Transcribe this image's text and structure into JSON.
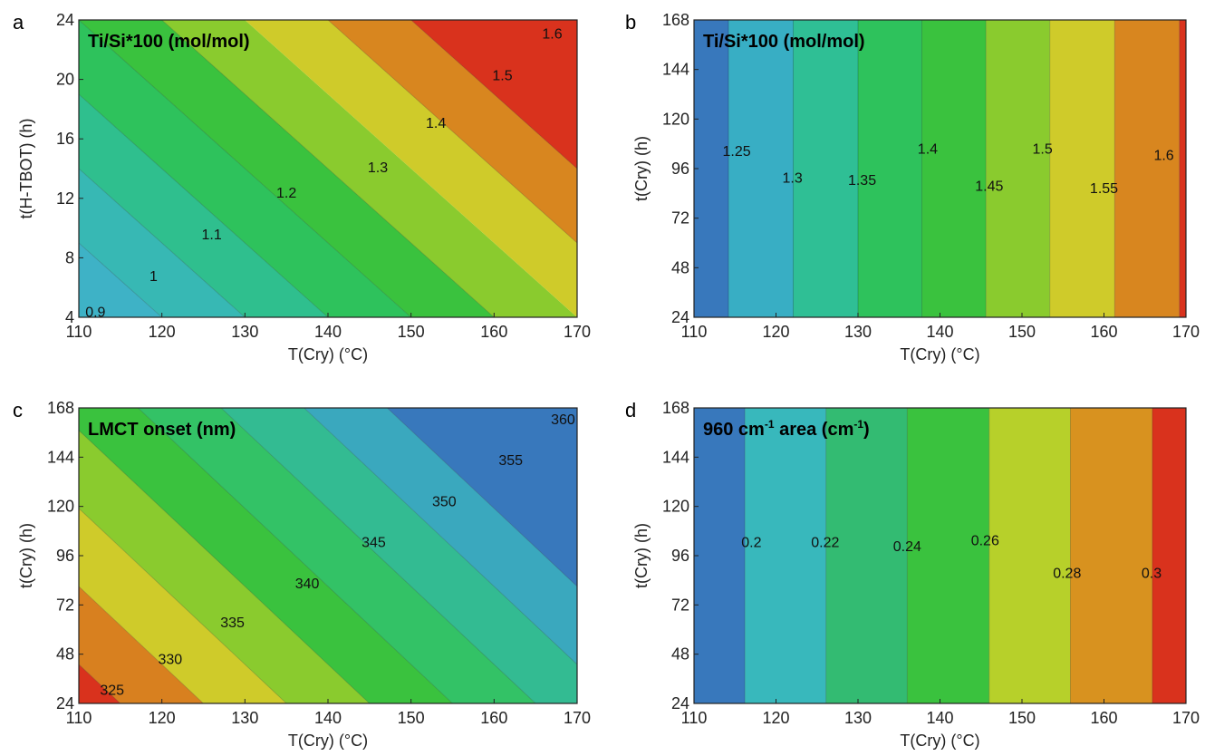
{
  "chart_data": [
    {
      "panel": "a",
      "type": "heatmap",
      "title": "Ti/Si*100 (mol/mol)",
      "title_sup": "",
      "title_tail": "",
      "xlabel": "T(Cry) (°C)",
      "ylabel": "t(H-TBOT) (h)",
      "xlim": [
        110,
        170
      ],
      "ylim": [
        4,
        24
      ],
      "xticks": [
        110,
        120,
        130,
        140,
        150,
        160,
        170
      ],
      "yticks": [
        4,
        8,
        12,
        16,
        20,
        24
      ],
      "contour_form": "diagonal",
      "model": {
        "intercept": 0.8,
        "x_ref": 110,
        "y_ref": 4,
        "x_coef": 0.01,
        "y_coef": 0.02
      },
      "levels": [
        0.9,
        1,
        1.1,
        1.2,
        1.3,
        1.4,
        1.5,
        1.6
      ],
      "colors": [
        "#3EB2C6",
        "#37B8B4",
        "#2FBF8E",
        "#2EC25C",
        "#3AC23E",
        "#8ACB2E",
        "#CFCB2A",
        "#D8861F",
        "#D9321D"
      ],
      "contour_labels": [
        {
          "text": "0.9",
          "x": 112.0,
          "y": 4.3
        },
        {
          "text": "1",
          "x": 119.0,
          "y": 6.7
        },
        {
          "text": "1.1",
          "x": 126.0,
          "y": 9.5
        },
        {
          "text": "1.2",
          "x": 135.0,
          "y": 12.3
        },
        {
          "text": "1.3",
          "x": 146.0,
          "y": 14.0
        },
        {
          "text": "1.4",
          "x": 153.0,
          "y": 17.0
        },
        {
          "text": "1.5",
          "x": 161.0,
          "y": 20.2
        },
        {
          "text": "1.6",
          "x": 167.0,
          "y": 23.0
        }
      ]
    },
    {
      "panel": "b",
      "type": "heatmap",
      "title": "Ti/Si*100 (mol/mol)",
      "title_sup": "",
      "title_tail": "",
      "xlabel": "T(Cry) (°C)",
      "ylabel": "t(Cry) (h)",
      "xlim": [
        110,
        170
      ],
      "ylim": [
        24,
        168
      ],
      "xticks": [
        110,
        120,
        130,
        140,
        150,
        160,
        170
      ],
      "yticks": [
        24,
        48,
        72,
        96,
        120,
        144,
        168
      ],
      "contour_form": "vertical",
      "boundaries": [
        114.2,
        122.1,
        130.0,
        137.8,
        145.6,
        153.4,
        161.3,
        169.2
      ],
      "levels": [
        1.25,
        1.3,
        1.35,
        1.4,
        1.45,
        1.5,
        1.55,
        1.6
      ],
      "colors": [
        "#3878BC",
        "#38AEC4",
        "#2FBF95",
        "#2EC25C",
        "#3AC23E",
        "#8ACB2E",
        "#CFCB2A",
        "#D8861F",
        "#D9321D"
      ],
      "contour_labels": [
        {
          "text": "1.25",
          "x": 115.2,
          "y": 104
        },
        {
          "text": "1.3",
          "x": 122.0,
          "y": 91
        },
        {
          "text": "1.35",
          "x": 130.5,
          "y": 90
        },
        {
          "text": "1.4",
          "x": 138.5,
          "y": 105
        },
        {
          "text": "1.45",
          "x": 146.0,
          "y": 87
        },
        {
          "text": "1.5",
          "x": 152.5,
          "y": 105
        },
        {
          "text": "1.55",
          "x": 160.0,
          "y": 86
        },
        {
          "text": "1.6",
          "x": 167.3,
          "y": 102
        }
      ]
    },
    {
      "panel": "c",
      "type": "heatmap",
      "title": "LMCT onset (nm)",
      "title_sup": "",
      "title_tail": "",
      "xlabel": "T(Cry) (°C)",
      "ylabel": "t(Cry) (h)",
      "xlim": [
        110,
        170
      ],
      "ylim": [
        24,
        168
      ],
      "xticks": [
        110,
        120,
        130,
        140,
        150,
        160,
        170
      ],
      "yticks": [
        24,
        48,
        72,
        96,
        120,
        144,
        168
      ],
      "contour_form": "diagonal",
      "model": {
        "intercept": 322.5,
        "x_ref": 110,
        "y_ref": 24,
        "x_coef": 0.5,
        "y_coef": 0.1315
      },
      "levels": [
        325,
        330,
        335,
        340,
        345,
        350,
        355,
        360
      ],
      "colors": [
        "#D9321D",
        "#D8801F",
        "#CFCB2A",
        "#8ACB2E",
        "#3AC23E",
        "#33C266",
        "#33BB92",
        "#3AA8BE",
        "#3878BC"
      ],
      "contour_labels": [
        {
          "text": "325",
          "x": 114.0,
          "y": 30
        },
        {
          "text": "330",
          "x": 121.0,
          "y": 45
        },
        {
          "text": "335",
          "x": 128.5,
          "y": 63
        },
        {
          "text": "340",
          "x": 137.5,
          "y": 82
        },
        {
          "text": "345",
          "x": 145.5,
          "y": 102
        },
        {
          "text": "350",
          "x": 154.0,
          "y": 122
        },
        {
          "text": "355",
          "x": 162.0,
          "y": 142
        },
        {
          "text": "360",
          "x": 168.3,
          "y": 162
        }
      ]
    },
    {
      "panel": "d",
      "type": "heatmap",
      "title": "960 cm",
      "title_sup": "-1",
      "title_tail": " area (cm",
      "title_tail_sup": "-1",
      "title_end": ")",
      "xlabel": "T(Cry) (°C)",
      "ylabel": "t(Cry) (h)",
      "xlim": [
        110,
        170
      ],
      "ylim": [
        24,
        168
      ],
      "xticks": [
        110,
        120,
        130,
        140,
        150,
        160,
        170
      ],
      "yticks": [
        24,
        48,
        72,
        96,
        120,
        144,
        168
      ],
      "contour_form": "vertical",
      "boundaries": [
        116.2,
        126.1,
        136.0,
        146.0,
        155.9,
        165.9
      ],
      "levels": [
        0.2,
        0.22,
        0.24,
        0.26,
        0.28,
        0.3
      ],
      "colors": [
        "#3878BC",
        "#38B8BC",
        "#33BB72",
        "#3AC23E",
        "#B7D02A",
        "#D8921F",
        "#D9321D"
      ],
      "contour_labels": [
        {
          "text": "0.2",
          "x": 117.0,
          "y": 102
        },
        {
          "text": "0.22",
          "x": 126.0,
          "y": 102
        },
        {
          "text": "0.24",
          "x": 136.0,
          "y": 100
        },
        {
          "text": "0.26",
          "x": 145.5,
          "y": 103
        },
        {
          "text": "0.28",
          "x": 155.5,
          "y": 87
        },
        {
          "text": "0.3",
          "x": 165.8,
          "y": 87
        }
      ]
    }
  ]
}
